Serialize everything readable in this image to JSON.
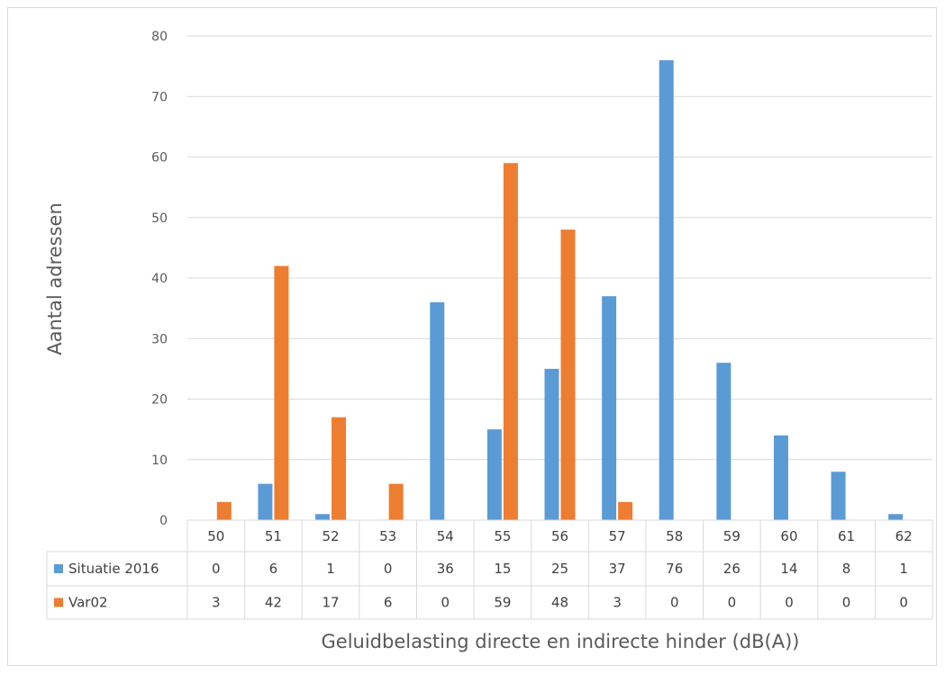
{
  "chart_data": {
    "type": "bar",
    "categories": [
      "50",
      "51",
      "52",
      "53",
      "54",
      "55",
      "56",
      "57",
      "58",
      "59",
      "60",
      "61",
      "62"
    ],
    "series": [
      {
        "name": "Situatie 2016",
        "color": "#5b9bd5",
        "values": [
          0,
          6,
          1,
          0,
          36,
          15,
          25,
          37,
          76,
          26,
          14,
          8,
          1
        ]
      },
      {
        "name": "Var02",
        "color": "#ed7d31",
        "values": [
          3,
          42,
          17,
          6,
          0,
          59,
          48,
          3,
          0,
          0,
          0,
          0,
          0
        ]
      }
    ],
    "title": "",
    "xlabel": "Geluidbelasting directe en indirecte hinder (dB(A))",
    "ylabel": "Aantal adressen",
    "ylim": [
      0,
      80
    ],
    "yticks": [
      "0",
      "10",
      "20",
      "30",
      "40",
      "50",
      "60",
      "70",
      "80"
    ],
    "grid": true,
    "legend": "data table",
    "data_table": true
  }
}
